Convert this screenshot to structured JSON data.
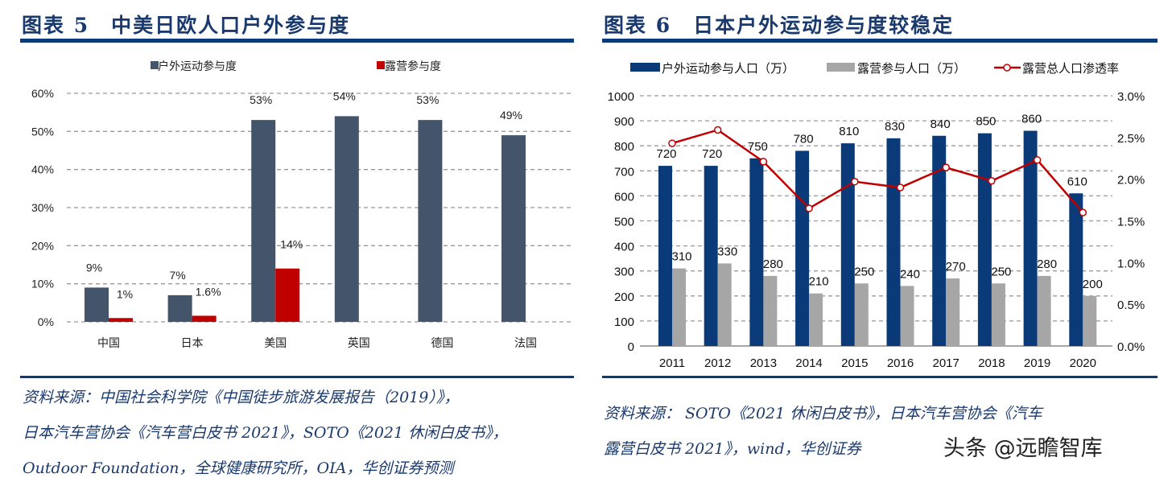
{
  "left": {
    "title": "图表 5　中美日欧人口户外参与度",
    "source_lines": [
      "资料来源：中国社会科学院《中国徒步旅游发展报告（2019）》，",
      "日本汽车营协会《汽车营白皮书 2021》，SOTO《2021 休闲白皮书》，",
      "Outdoor Foundation，全球健康研究所，OIA，华创证券预测"
    ]
  },
  "right": {
    "title": "图表 6　日本户外运动参与度较稳定",
    "source_lines": [
      "资料来源： SOTO《2021 休闲白皮书》，日本汽车营协会《汽车",
      "露营白皮书 2021》，wind，华创证券"
    ]
  },
  "watermark": "头条 @远瞻智库",
  "chart_data": [
    {
      "type": "bar",
      "categories": [
        "中国",
        "日本",
        "美国",
        "英国",
        "德国",
        "法国"
      ],
      "series": [
        {
          "name": "户外运动参与度",
          "color": "#44546a",
          "values": [
            9,
            7,
            53,
            54,
            53,
            49
          ],
          "labels": [
            "9%",
            "7%",
            "53%",
            "54%",
            "53%",
            "49%"
          ]
        },
        {
          "name": "露营参与度",
          "color": "#c00000",
          "values": [
            1,
            1.6,
            14,
            null,
            null,
            null
          ],
          "labels": [
            "1%",
            "1.6%",
            "14%",
            "",
            "",
            ""
          ]
        }
      ],
      "ylim": [
        0,
        60
      ],
      "yticks": [
        "0%",
        "10%",
        "20%",
        "30%",
        "40%",
        "50%",
        "60%"
      ],
      "grid": true,
      "legend": "top"
    },
    {
      "type": "bar+line",
      "categories": [
        "2011",
        "2012",
        "2013",
        "2014",
        "2015",
        "2016",
        "2017",
        "2018",
        "2019",
        "2020"
      ],
      "series": [
        {
          "name": "户外运动参与人口（万）",
          "color": "#0b3a78",
          "axis": "left",
          "values": [
            720,
            720,
            750,
            780,
            810,
            830,
            840,
            850,
            860,
            610
          ]
        },
        {
          "name": "露营参与人口（万）",
          "color": "#a6a6a6",
          "axis": "left",
          "values": [
            310,
            330,
            280,
            210,
            250,
            240,
            270,
            250,
            280,
            200
          ]
        },
        {
          "name": "露营总人口渗透率",
          "color": "#c00000",
          "axis": "right",
          "type": "line",
          "values": [
            2.43,
            2.59,
            2.21,
            1.65,
            1.97,
            1.9,
            2.14,
            1.98,
            2.23,
            1.6
          ]
        }
      ],
      "ylim": [
        0,
        1000
      ],
      "yticks": [
        "0",
        "100",
        "200",
        "300",
        "400",
        "500",
        "600",
        "700",
        "800",
        "900",
        "1000"
      ],
      "y2lim": [
        0,
        3.0
      ],
      "y2ticks": [
        "0.0%",
        "0.5%",
        "1.0%",
        "1.5%",
        "2.0%",
        "2.5%",
        "3.0%"
      ],
      "grid": true,
      "legend": "top"
    }
  ]
}
